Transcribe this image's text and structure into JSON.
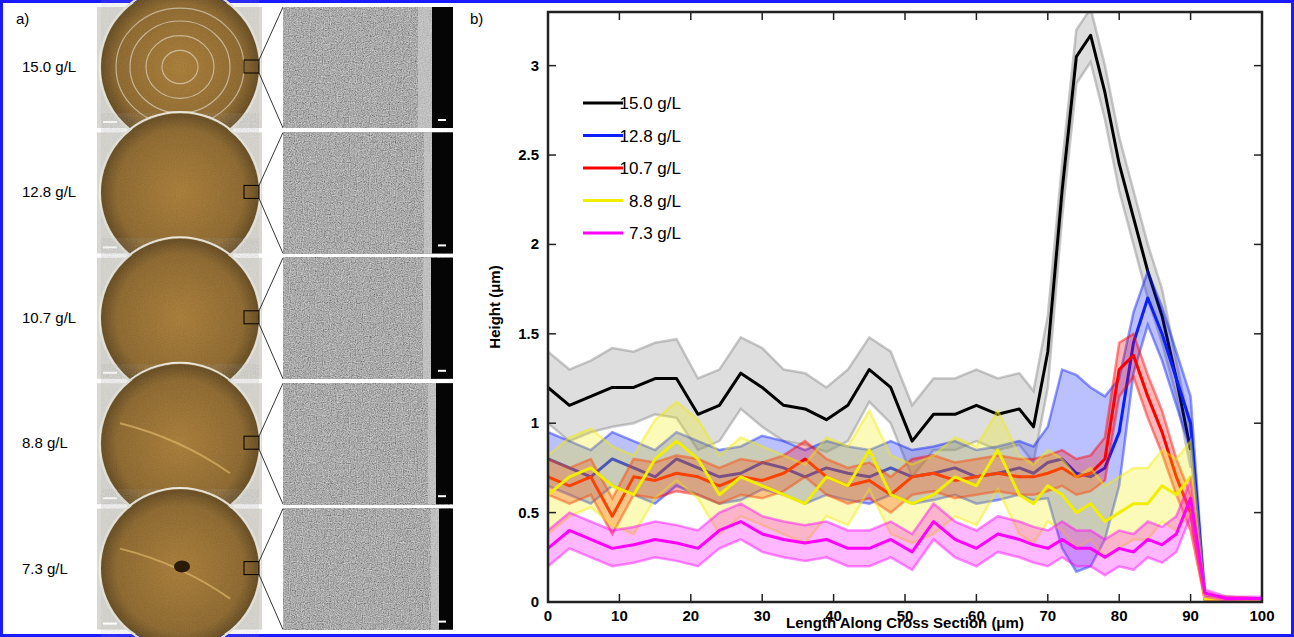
{
  "panel_a": {
    "label": "a)",
    "rows": [
      "15.0 g/L",
      "12.8 g/L",
      "10.7 g/L",
      "8.8 g/L",
      "7.3 g/L"
    ]
  },
  "chart_data": {
    "type": "line",
    "panel_label": "b)",
    "x_label": "Length Along Cross Section (μm)",
    "y_label": "Height (μm)",
    "xlim": [
      0,
      100
    ],
    "xticks": [
      0,
      10,
      20,
      30,
      40,
      50,
      60,
      70,
      80,
      90,
      100
    ],
    "ylim": [
      0,
      3.3
    ],
    "yticks": [
      0,
      0.5,
      1,
      1.5,
      2,
      2.5,
      3
    ],
    "grid": false,
    "legend": "upper left",
    "x": [
      0,
      3,
      6,
      9,
      12,
      15,
      18,
      21,
      24,
      27,
      30,
      33,
      36,
      39,
      42,
      45,
      48,
      51,
      54,
      57,
      60,
      63,
      66,
      68,
      70,
      72,
      74,
      76,
      78,
      80,
      82,
      84,
      86,
      88,
      90,
      92,
      95,
      100
    ],
    "series": [
      {
        "name": "15.0 g/L",
        "color": "#000000",
        "values": [
          1.2,
          1.1,
          1.15,
          1.2,
          1.2,
          1.25,
          1.25,
          1.05,
          1.1,
          1.28,
          1.2,
          1.1,
          1.08,
          1.02,
          1.1,
          1.3,
          1.2,
          0.9,
          1.05,
          1.05,
          1.1,
          1.05,
          1.08,
          0.98,
          1.4,
          2.3,
          3.05,
          3.17,
          2.85,
          2.45,
          2.15,
          1.85,
          1.6,
          1.25,
          0.85,
          null,
          null,
          null
        ],
        "error": [
          0.2,
          0.2,
          0.2,
          0.22,
          0.2,
          0.2,
          0.22,
          0.2,
          0.2,
          0.2,
          0.22,
          0.2,
          0.2,
          0.18,
          0.2,
          0.18,
          0.2,
          0.2,
          0.2,
          0.2,
          0.2,
          0.2,
          0.2,
          0.2,
          0.2,
          0.15,
          0.15,
          0.15,
          0.15,
          0.15,
          0.15,
          0.15,
          0.15,
          0.1,
          0.1,
          null,
          null,
          null
        ]
      },
      {
        "name": "12.8 g/L",
        "color": "#0a1eff",
        "values": [
          0.8,
          0.75,
          0.7,
          0.8,
          0.75,
          0.7,
          0.8,
          0.75,
          0.7,
          0.72,
          0.78,
          0.75,
          0.7,
          0.75,
          0.72,
          0.7,
          0.75,
          0.7,
          0.72,
          0.75,
          0.7,
          0.72,
          0.75,
          0.72,
          0.78,
          0.8,
          0.72,
          0.7,
          0.75,
          0.95,
          1.45,
          1.7,
          1.5,
          1.25,
          1.0,
          0.02,
          0.02,
          0.01
        ],
        "error": [
          0.15,
          0.15,
          0.15,
          0.15,
          0.15,
          0.15,
          0.15,
          0.15,
          0.15,
          0.15,
          0.15,
          0.15,
          0.15,
          0.15,
          0.15,
          0.15,
          0.15,
          0.15,
          0.15,
          0.15,
          0.15,
          0.15,
          0.15,
          0.15,
          0.2,
          0.5,
          0.55,
          0.5,
          0.4,
          0.3,
          0.17,
          0.15,
          0.15,
          0.15,
          0.15,
          0.01,
          0.01,
          0.01
        ]
      },
      {
        "name": "10.7 g/L",
        "color": "#ff0000",
        "values": [
          0.7,
          0.65,
          0.7,
          0.48,
          0.7,
          0.68,
          0.72,
          0.7,
          0.65,
          0.7,
          0.68,
          0.72,
          0.8,
          0.7,
          0.65,
          0.68,
          0.6,
          0.7,
          0.72,
          0.68,
          0.7,
          0.72,
          0.7,
          0.7,
          0.72,
          0.75,
          0.7,
          0.72,
          0.8,
          1.3,
          1.38,
          1.15,
          0.95,
          0.7,
          0.5,
          0.02,
          0.02,
          0.01
        ],
        "error": [
          0.1,
          0.1,
          0.1,
          0.1,
          0.1,
          0.1,
          0.1,
          0.1,
          0.1,
          0.1,
          0.1,
          0.1,
          0.1,
          0.1,
          0.1,
          0.1,
          0.1,
          0.1,
          0.1,
          0.1,
          0.1,
          0.1,
          0.1,
          0.1,
          0.1,
          0.1,
          0.1,
          0.1,
          0.12,
          0.15,
          0.12,
          0.12,
          0.12,
          0.1,
          0.1,
          0.01,
          0.01,
          0.01
        ]
      },
      {
        "name": "8.8 g/L",
        "color": "#f2ee00",
        "values": [
          0.6,
          0.7,
          0.75,
          0.65,
          0.6,
          0.8,
          0.9,
          0.8,
          0.6,
          0.7,
          0.65,
          0.6,
          0.55,
          0.7,
          0.65,
          0.85,
          0.6,
          0.55,
          0.6,
          0.7,
          0.65,
          0.85,
          0.6,
          0.55,
          0.65,
          0.6,
          0.5,
          0.55,
          0.45,
          0.5,
          0.55,
          0.55,
          0.65,
          0.6,
          0.7,
          0.02,
          0.02,
          0.01
        ],
        "error": [
          0.22,
          0.22,
          0.22,
          0.22,
          0.22,
          0.22,
          0.22,
          0.22,
          0.22,
          0.22,
          0.22,
          0.22,
          0.22,
          0.22,
          0.22,
          0.22,
          0.22,
          0.22,
          0.22,
          0.22,
          0.22,
          0.22,
          0.22,
          0.22,
          0.2,
          0.2,
          0.2,
          0.2,
          0.2,
          0.2,
          0.2,
          0.2,
          0.2,
          0.2,
          0.2,
          0.01,
          0.01,
          0.01
        ]
      },
      {
        "name": "7.3 g/L",
        "color": "#ff00ff",
        "values": [
          0.3,
          0.4,
          0.35,
          0.3,
          0.32,
          0.35,
          0.33,
          0.3,
          0.4,
          0.45,
          0.38,
          0.35,
          0.33,
          0.35,
          0.3,
          0.3,
          0.35,
          0.28,
          0.45,
          0.35,
          0.3,
          0.38,
          0.35,
          0.32,
          0.3,
          0.35,
          0.3,
          0.3,
          0.25,
          0.3,
          0.28,
          0.35,
          0.32,
          0.38,
          0.58,
          0.05,
          0.02,
          0.02
        ],
        "error": [
          0.1,
          0.1,
          0.1,
          0.1,
          0.1,
          0.1,
          0.1,
          0.1,
          0.1,
          0.1,
          0.1,
          0.1,
          0.1,
          0.1,
          0.1,
          0.1,
          0.1,
          0.1,
          0.1,
          0.1,
          0.1,
          0.1,
          0.1,
          0.1,
          0.1,
          0.1,
          0.1,
          0.1,
          0.1,
          0.1,
          0.1,
          0.1,
          0.1,
          0.1,
          0.1,
          0.02,
          0.01,
          0.01
        ]
      }
    ]
  }
}
